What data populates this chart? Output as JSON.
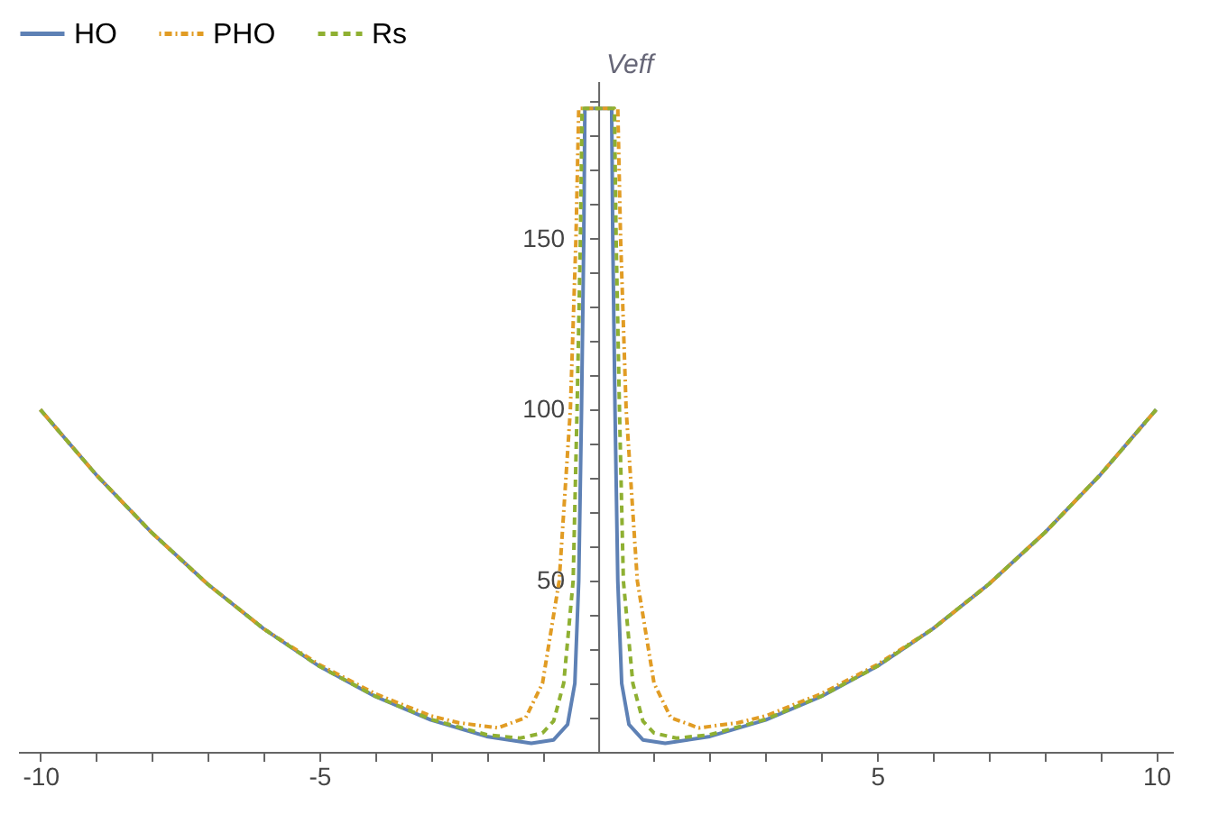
{
  "chart_data": {
    "type": "line",
    "ylabel": "Veff",
    "xlim": [
      -10.4,
      10.3
    ],
    "ylim": [
      0,
      196
    ],
    "xticks": [
      -10,
      {
        "value": -9,
        "label": null
      },
      {
        "value": -8,
        "label": null
      },
      {
        "value": -7,
        "label": null
      },
      {
        "value": -6,
        "label": null
      },
      -5,
      {
        "value": -4,
        "label": null
      },
      {
        "value": -3,
        "label": null
      },
      {
        "value": -2,
        "label": null
      },
      {
        "value": -1,
        "label": null
      },
      {
        "value": 1,
        "label": null
      },
      {
        "value": 2,
        "label": null
      },
      {
        "value": 3,
        "label": null
      },
      {
        "value": 4,
        "label": null
      },
      5,
      {
        "value": 6,
        "label": null
      },
      {
        "value": 7,
        "label": null
      },
      {
        "value": 8,
        "label": null
      },
      {
        "value": 9,
        "label": null
      },
      10
    ],
    "yticks": [
      {
        "value": 10,
        "label": null
      },
      {
        "value": 20,
        "label": null
      },
      {
        "value": 30,
        "label": null
      },
      {
        "value": 40,
        "label": null
      },
      50,
      {
        "value": 60,
        "label": null
      },
      {
        "value": 70,
        "label": null
      },
      {
        "value": 80,
        "label": null
      },
      {
        "value": 90,
        "label": null
      },
      100,
      {
        "value": 110,
        "label": null
      },
      {
        "value": 120,
        "label": null
      },
      {
        "value": 130,
        "label": null
      },
      {
        "value": 140,
        "label": null
      },
      150,
      {
        "value": 160,
        "label": null
      },
      {
        "value": 170,
        "label": null
      },
      {
        "value": 180,
        "label": null
      },
      {
        "value": 190,
        "label": null
      }
    ],
    "grid": false,
    "legend": "top",
    "marker": "none",
    "series": [
      {
        "name": "HO",
        "color": "#5e81b5",
        "line_style": "solid",
        "x": [
          -10,
          -9,
          -8,
          -7,
          -6,
          -5,
          -4,
          -3,
          -2,
          -1.2,
          -0.8,
          -0.55,
          -0.42,
          -0.35,
          -0.3,
          -0.26,
          -0.24,
          0.24,
          0.26,
          0.3,
          0.35,
          0.42,
          0.55,
          0.8,
          1.2,
          2,
          3,
          4,
          5,
          6,
          7,
          8,
          9,
          10
        ],
        "values": [
          100,
          81,
          64,
          49,
          36,
          25,
          16.2,
          9.3,
          4.5,
          2.5,
          3.5,
          8,
          20,
          50,
          100,
          150,
          188,
          188,
          150,
          100,
          50,
          20,
          8,
          3.5,
          2.5,
          4.5,
          9.3,
          16.2,
          25,
          36,
          49,
          64,
          81,
          100
        ]
      },
      {
        "name": "PHO",
        "color": "#e19c24",
        "line_style": "dotted",
        "x": [
          -10,
          -9,
          -8,
          -7,
          -6,
          -5,
          -4,
          -3,
          -2.5,
          -1.8,
          -1.3,
          -1,
          -0.7,
          -0.5,
          -0.4,
          -0.35,
          0.35,
          0.4,
          0.5,
          0.7,
          1,
          1.3,
          1.8,
          2.5,
          3,
          4,
          5,
          6,
          7,
          8,
          9,
          10
        ],
        "values": [
          100,
          81,
          64,
          49,
          36,
          25.5,
          17,
          10.5,
          8.5,
          7,
          10,
          20,
          50,
          100,
          150,
          188,
          188,
          150,
          100,
          50,
          20,
          10,
          7,
          8.5,
          10.5,
          17,
          25.5,
          36,
          49,
          64,
          81,
          100
        ]
      },
      {
        "name": "Rs",
        "color": "#8fb032",
        "line_style": "dashed",
        "x": [
          -10,
          -9,
          -8,
          -7,
          -6,
          -5,
          -4,
          -3,
          -2,
          -1.4,
          -1,
          -0.8,
          -0.62,
          -0.45,
          -0.38,
          -0.32,
          -0.29,
          0.29,
          0.32,
          0.38,
          0.45,
          0.62,
          0.8,
          1,
          1.4,
          2,
          3,
          4,
          5,
          6,
          7,
          8,
          9,
          10
        ],
        "values": [
          100,
          81,
          64,
          49,
          36,
          25,
          16.3,
          9.5,
          5,
          4,
          5.5,
          9,
          20,
          50,
          100,
          150,
          188,
          188,
          150,
          100,
          50,
          20,
          9,
          5.5,
          4,
          5,
          9.5,
          16.3,
          25,
          36,
          49,
          64,
          81,
          100
        ]
      }
    ]
  }
}
